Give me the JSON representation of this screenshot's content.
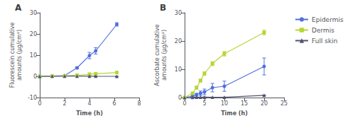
{
  "chart_data": [
    {
      "type": "line",
      "title": "A",
      "xlabel": "Time (h)",
      "ylabel": "Fluorescein cumulative\namounts (μg/cm²)",
      "xlim": [
        0,
        8
      ],
      "ylim": [
        -10,
        30
      ],
      "xticks": [
        0,
        2,
        4,
        6,
        8
      ],
      "yticks": [
        -10,
        0,
        10,
        20,
        30
      ],
      "grid": false,
      "x": [
        0,
        1,
        2,
        3,
        4,
        4.5,
        6.2
      ],
      "series": [
        {
          "marker": "circle",
          "values": [
            0,
            0.1,
            0.3,
            4.0,
            9.8,
            12.0,
            24.5
          ],
          "yerr": [
            0,
            0.05,
            0.1,
            0.5,
            1.5,
            1.5,
            0.8
          ]
        },
        {
          "marker": "square",
          "values": [
            0,
            0.1,
            0.2,
            0.5,
            1.0,
            1.2,
            1.8
          ],
          "yerr": [
            0,
            0.05,
            0.1,
            0.1,
            0.15,
            0.15,
            0.2
          ]
        },
        {
          "marker": "triangle",
          "values": [
            0,
            0.05,
            0.1,
            0.1,
            0.1,
            0.05,
            0.0
          ],
          "yerr": [
            0,
            0.02,
            0.02,
            0.02,
            0.02,
            0.02,
            0.02
          ]
        }
      ]
    },
    {
      "type": "line",
      "title": "B",
      "xlabel": "Time (h)",
      "ylabel": "Ascorbate cumulative\namounts (μg/cm²)",
      "xlim": [
        0,
        25
      ],
      "ylim": [
        0,
        30
      ],
      "xticks": [
        0,
        5,
        10,
        15,
        20,
        25
      ],
      "yticks": [
        0,
        10,
        20,
        30
      ],
      "grid": false,
      "legend": "right",
      "x": [
        0,
        2,
        3,
        4,
        5,
        7,
        10,
        20
      ],
      "series": [
        {
          "name": "Epidermis",
          "marker": "circle",
          "values": [
            0,
            0.5,
            1.0,
            1.5,
            2.0,
            3.5,
            4.0,
            11.0
          ],
          "yerr": [
            0,
            0.3,
            0.5,
            0.8,
            1.0,
            1.5,
            1.8,
            3.0
          ]
        },
        {
          "name": "Dermis",
          "marker": "square",
          "values": [
            0,
            1.5,
            3.5,
            6.0,
            8.5,
            12.0,
            15.5,
            23.0
          ],
          "yerr": [
            0,
            0.3,
            0.5,
            0.5,
            0.6,
            0.7,
            0.8,
            0.8
          ]
        },
        {
          "name": "Full skin",
          "marker": "triangle",
          "values": [
            0,
            0.05,
            0.1,
            0.1,
            0.15,
            0.1,
            0.1,
            0.8
          ],
          "yerr": [
            0,
            0.02,
            0.02,
            0.02,
            0.05,
            0.05,
            0.05,
            0.1
          ]
        }
      ]
    }
  ]
}
